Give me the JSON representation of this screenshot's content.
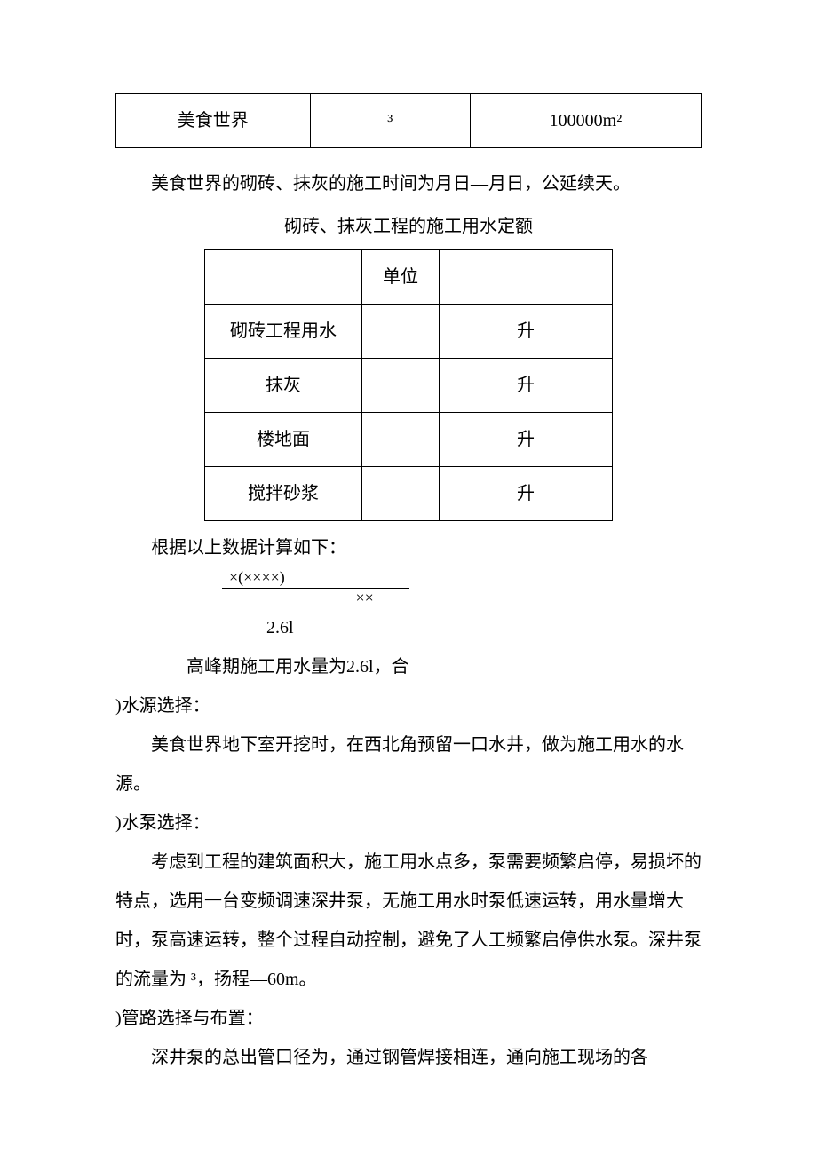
{
  "table1": {
    "row": [
      "美食世界",
      "³",
      "100000m²"
    ]
  },
  "para1": "美食世界的砌砖、抹灰的施工时间为月日—月日，公延续天。",
  "table2_caption": "砌砖、抹灰工程的施工用水定额",
  "table2": {
    "header": [
      "",
      "单位",
      ""
    ],
    "rows": [
      [
        "砌砖工程用水",
        "",
        "升"
      ],
      [
        "抹灰",
        "",
        "升"
      ],
      [
        "楼地面",
        "",
        "升"
      ],
      [
        "搅拌砂浆",
        "",
        "升"
      ]
    ]
  },
  "calc_intro": "根据以上数据计算如下：",
  "fraction": {
    "num": "×(××××)",
    "den": "××"
  },
  "result": "2.6l",
  "peak_line": "高峰期施工用水量为2.6l，合",
  "section_water_source": {
    "title": ")水源选择：",
    "body": "美食世界地下室开挖时，在西北角预留一口水井，做为施工用水的水源。"
  },
  "section_pump": {
    "title": ")水泵选择：",
    "body": "考虑到工程的建筑面积大，施工用水点多，泵需要频繁启停，易损坏的特点，选用一台变频调速深井泵，无施工用水时泵低速运转，用水量增大时，泵高速运转，整个过程自动控制，避免了人工频繁启停供水泵。深井泵的流量为 ³，扬程—60m。"
  },
  "section_pipe": {
    "title": ")管路选择与布置：",
    "body": "深井泵的总出管口径为，通过钢管焊接相连，通向施工现场的各"
  }
}
